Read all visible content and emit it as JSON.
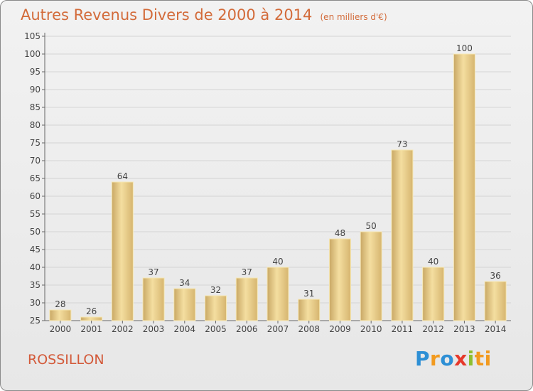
{
  "title": "Autres Revenus Divers de 2000 à 2014",
  "subtitle": "(en milliers d'€)",
  "commune": "ROSSILLON",
  "logo": {
    "text": "Proxiti",
    "letters": [
      "P",
      "r",
      "o",
      "x",
      "i",
      "ti"
    ]
  },
  "colors": {
    "title": "#d36b3a",
    "bar_light": "#f3dd9c",
    "bar_dark": "#c9a865",
    "axis": "#666666"
  },
  "chart_data": {
    "type": "bar",
    "categories": [
      "2000",
      "2001",
      "2002",
      "2003",
      "2004",
      "2005",
      "2006",
      "2007",
      "2008",
      "2009",
      "2010",
      "2011",
      "2012",
      "2013",
      "2014"
    ],
    "values": [
      28,
      26,
      64,
      37,
      34,
      32,
      37,
      40,
      31,
      48,
      50,
      73,
      40,
      100,
      36
    ],
    "title": "Autres Revenus Divers de 2000 à 2014",
    "subtitle": "(en milliers d'€)",
    "xlabel": "",
    "ylabel": "",
    "ylim": [
      25,
      105
    ],
    "yticks": [
      25,
      30,
      35,
      40,
      45,
      50,
      55,
      60,
      65,
      70,
      75,
      80,
      85,
      90,
      95,
      100,
      105
    ],
    "grid": true,
    "data_labels": true
  }
}
